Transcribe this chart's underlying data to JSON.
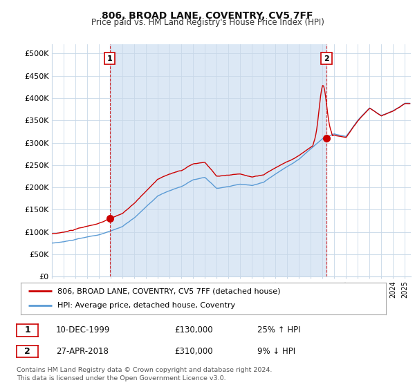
{
  "title": "806, BROAD LANE, COVENTRY, CV5 7FF",
  "subtitle": "Price paid vs. HM Land Registry's House Price Index (HPI)",
  "ylim": [
    0,
    520000
  ],
  "yticks": [
    0,
    50000,
    100000,
    150000,
    200000,
    250000,
    300000,
    350000,
    400000,
    450000,
    500000
  ],
  "ytick_labels": [
    "£0",
    "£50K",
    "£100K",
    "£150K",
    "£200K",
    "£250K",
    "£300K",
    "£350K",
    "£400K",
    "£450K",
    "£500K"
  ],
  "background_color": "#ffffff",
  "plot_bg_color": "#ffffff",
  "shade_color": "#dce8f5",
  "grid_color": "#c8d8e8",
  "hpi_color": "#5b9bd5",
  "price_color": "#cc0000",
  "sale1_x": 1999.92,
  "sale1_y": 130000,
  "sale2_x": 2018.33,
  "sale2_y": 310000,
  "legend_entry1": "806, BROAD LANE, COVENTRY, CV5 7FF (detached house)",
  "legend_entry2": "HPI: Average price, detached house, Coventry",
  "annotation1_label": "1",
  "annotation2_label": "2",
  "table_row1": [
    "1",
    "10-DEC-1999",
    "£130,000",
    "25% ↑ HPI"
  ],
  "table_row2": [
    "2",
    "27-APR-2018",
    "£310,000",
    "9% ↓ HPI"
  ],
  "footer": "Contains HM Land Registry data © Crown copyright and database right 2024.\nThis data is licensed under the Open Government Licence v3.0.",
  "xmin": 1995.0,
  "xmax": 2025.5
}
